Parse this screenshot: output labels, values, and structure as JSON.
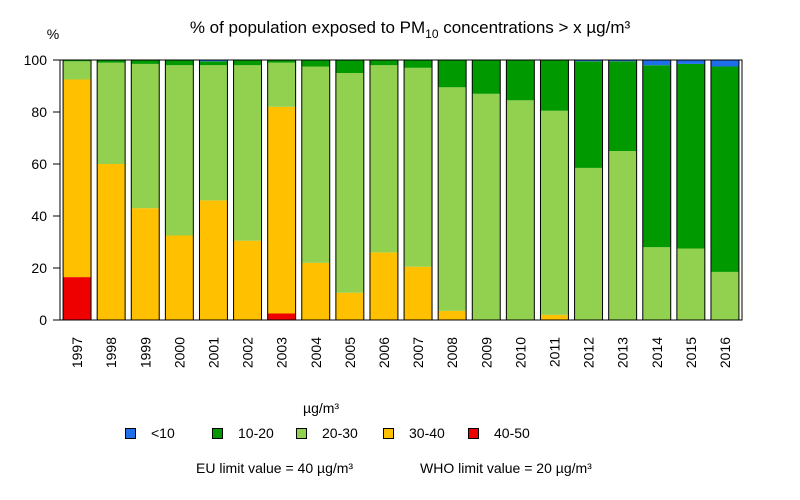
{
  "chart_data": {
    "type": "bar",
    "stacked": true,
    "title_prefix": "% of population exposed to PM",
    "title_subscript": "10",
    "title_suffix": " concentrations > x µg/m³",
    "ylabel": "%",
    "ylim": [
      0,
      100
    ],
    "yticks": [
      0,
      20,
      40,
      60,
      80,
      100
    ],
    "categories": [
      "1997",
      "1998",
      "1999",
      "2000",
      "2001",
      "2002",
      "2003",
      "2004",
      "2005",
      "2006",
      "2007",
      "2008",
      "2009",
      "2010",
      "2011",
      "2012",
      "2013",
      "2014",
      "2015",
      "2016"
    ],
    "series": [
      {
        "name": "40-50",
        "color": "#ee0000",
        "values": [
          16.5,
          0,
          0,
          0,
          0,
          0,
          2.5,
          0,
          0,
          0,
          0,
          0,
          0,
          0,
          0,
          0,
          0,
          0,
          0,
          0
        ]
      },
      {
        "name": "30-40",
        "color": "#ffc000",
        "values": [
          76,
          60,
          43,
          32.5,
          46,
          30.5,
          79.5,
          22,
          10.5,
          26,
          20.5,
          3.5,
          0,
          0,
          2,
          0,
          0,
          0,
          0,
          0
        ]
      },
      {
        "name": "20-30",
        "color": "#92d050",
        "values": [
          7,
          39,
          55.5,
          65.5,
          52,
          67.5,
          17,
          75.5,
          84.5,
          72,
          76.5,
          86,
          87,
          84.5,
          78.5,
          58.5,
          65,
          28,
          27.5,
          18.5
        ]
      },
      {
        "name": "10-20",
        "color": "#009900",
        "values": [
          0.5,
          1,
          1.5,
          2,
          1.5,
          2,
          1,
          2.5,
          5,
          2,
          3,
          10.5,
          13,
          15.5,
          19.5,
          41,
          34.5,
          70,
          71,
          79
        ]
      },
      {
        "name": "<10",
        "color": "#1f6feb",
        "values": [
          0,
          0,
          0,
          0,
          0.5,
          0,
          0,
          0,
          0,
          0,
          0,
          0,
          0,
          0,
          0,
          0.5,
          0.5,
          2,
          1.5,
          2.5
        ]
      }
    ]
  },
  "legend": {
    "unit_label": "µg/m³",
    "items": [
      {
        "label": "<10",
        "color": "#1f6feb"
      },
      {
        "label": "10-20",
        "color": "#009900"
      },
      {
        "label": "20-30",
        "color": "#92d050"
      },
      {
        "label": "30-40",
        "color": "#ffc000"
      },
      {
        "label": "40-50",
        "color": "#ee0000"
      }
    ]
  },
  "limits": {
    "eu": "EU limit value = 40 µg/m³",
    "who": "WHO limit value = 20 µg/m³"
  }
}
